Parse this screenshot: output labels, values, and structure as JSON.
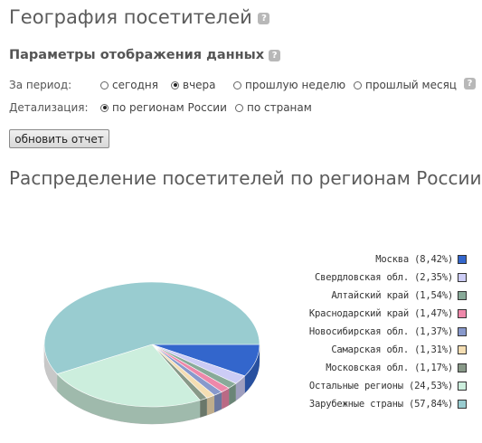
{
  "page": {
    "title": "География посетителей",
    "help_glyph": "?"
  },
  "params": {
    "title": "Параметры отображения данных",
    "period": {
      "label": "За период:",
      "options": [
        "сегодня",
        "вчера",
        "прошлую неделю",
        "прошлый месяц"
      ],
      "selected": 1
    },
    "detail": {
      "label": "Детализация:",
      "options": [
        "по регионам России",
        "по странам"
      ],
      "selected": 0
    },
    "refresh_label": "обновить отчет"
  },
  "chart_data": {
    "type": "pie",
    "title": "Распределение посетителей по регионам России",
    "legend_position": "right",
    "slices": [
      {
        "label": "Москва (8,42%)",
        "value": 8.42,
        "color": "#3366cc"
      },
      {
        "label": "Свердловская обл. (2,35%)",
        "value": 2.35,
        "color": "#ccccf5"
      },
      {
        "label": "Алтайский край (1,54%)",
        "value": 1.54,
        "color": "#88aa99"
      },
      {
        "label": "Краснодарский край (1,47%)",
        "value": 1.47,
        "color": "#ee88aa"
      },
      {
        "label": "Новосибирская обл. (1,37%)",
        "value": 1.37,
        "color": "#8899cc"
      },
      {
        "label": "Самарская обл. (1,31%)",
        "value": 1.31,
        "color": "#f5deb3"
      },
      {
        "label": "Московская обл. (1,17%)",
        "value": 1.17,
        "color": "#889988"
      },
      {
        "label": "Остальные регионы (24,53%)",
        "value": 24.53,
        "color": "#cceedd"
      },
      {
        "label": "Зарубежные страны (57,84%)",
        "value": 57.84,
        "color": "#99ccd0"
      }
    ]
  }
}
